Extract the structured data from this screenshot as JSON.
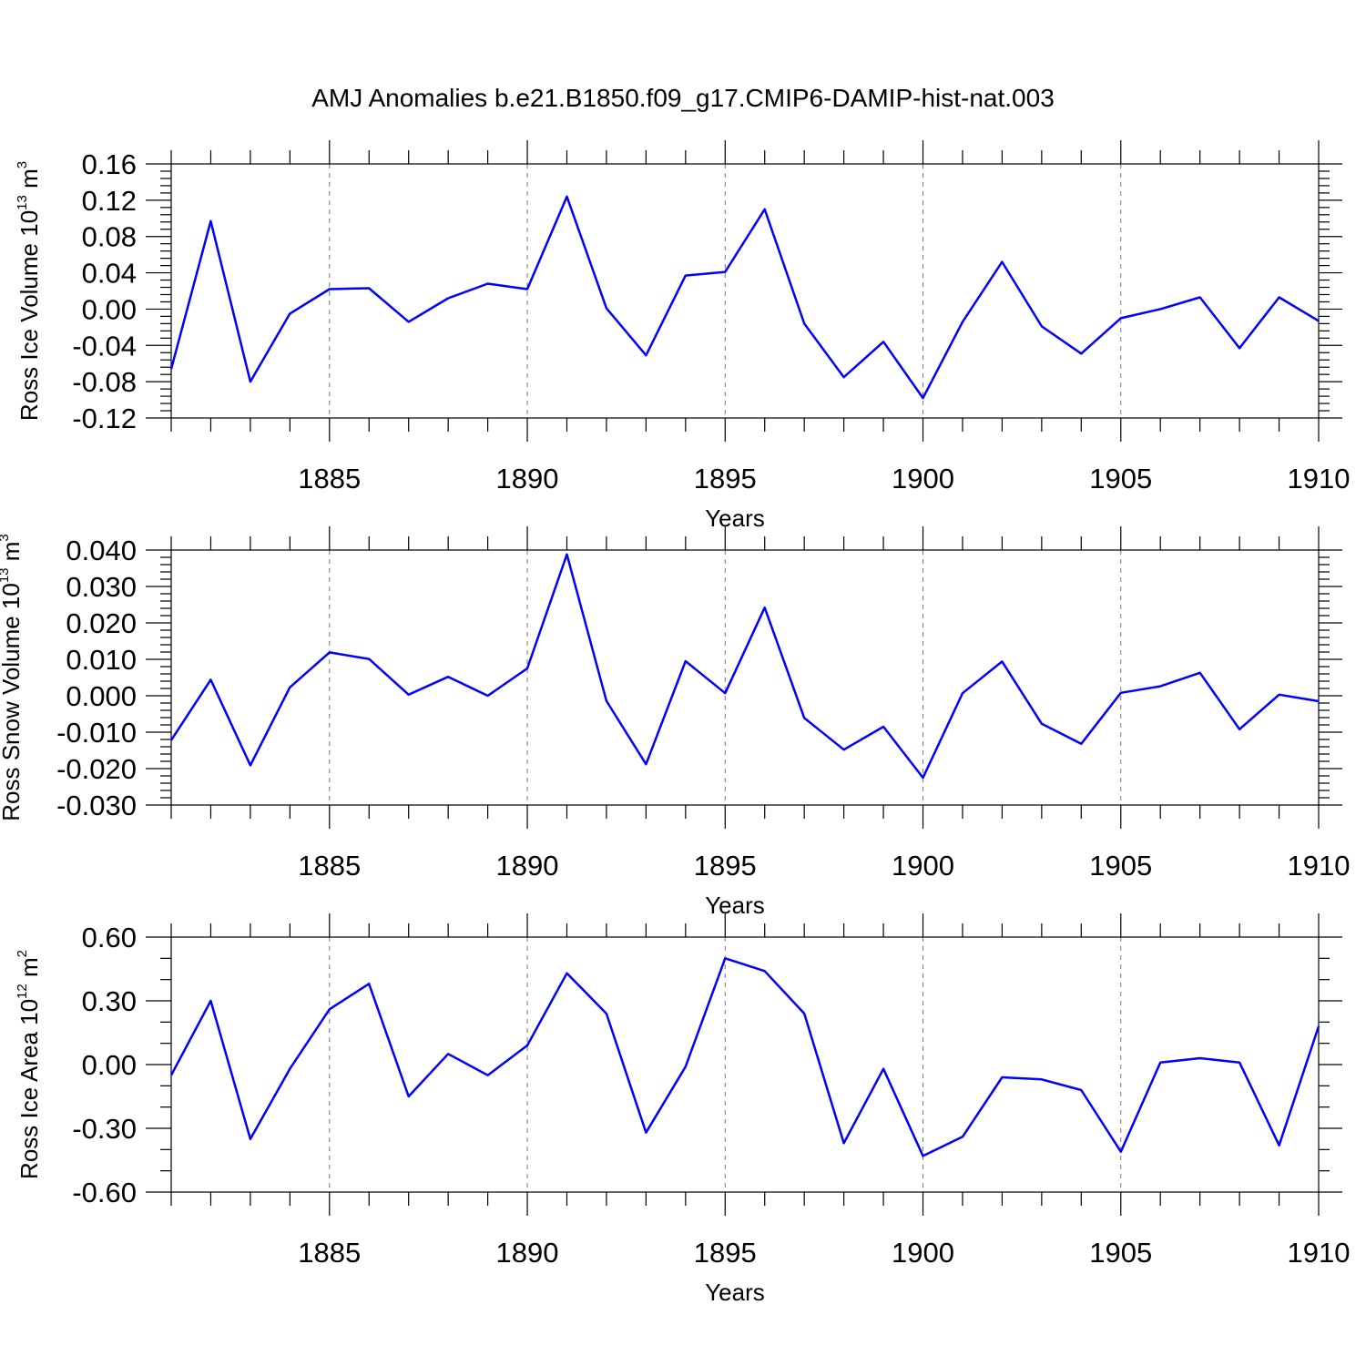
{
  "title": "AMJ Anomalies b.e21.B1850.f09_g17.CMIP6-DAMIP-hist-nat.003",
  "colors": {
    "line": "#0000ff",
    "axis": "#000000",
    "grid": "#777777"
  },
  "chart_data": [
    {
      "type": "line",
      "ylabel": {
        "text": "Ross Ice Volume 10",
        "exp": "13",
        "unit": " m",
        "unit_exp": "3"
      },
      "xlabel": "Years",
      "xlim": [
        1881,
        1910
      ],
      "ylim": [
        -0.12,
        0.16
      ],
      "x_ticks": [
        1885,
        1890,
        1895,
        1900,
        1905,
        1910
      ],
      "x_tick_labels": [
        "1885",
        "1890",
        "1895",
        "1900",
        "1905",
        "1910"
      ],
      "y_ticks": [
        -0.12,
        -0.08,
        -0.04,
        0.0,
        0.04,
        0.08,
        0.12,
        0.16
      ],
      "y_tick_labels": [
        "-0.12",
        "-0.08",
        "-0.04",
        "0.00",
        "0.04",
        "0.08",
        "0.12",
        "0.16"
      ],
      "y_minor_step": 0.008,
      "grid": "dashed vertical at labeled years",
      "x": [
        1881,
        1882,
        1883,
        1884,
        1885,
        1886,
        1887,
        1888,
        1889,
        1890,
        1891,
        1892,
        1893,
        1894,
        1895,
        1896,
        1897,
        1898,
        1899,
        1900,
        1901,
        1902,
        1903,
        1904,
        1905,
        1906,
        1907,
        1908,
        1909,
        1910
      ],
      "y": [
        -0.066,
        0.097,
        -0.08,
        -0.005,
        0.022,
        0.023,
        -0.014,
        0.012,
        0.028,
        0.022,
        0.124,
        0.001,
        -0.051,
        0.037,
        0.041,
        0.11,
        -0.016,
        -0.075,
        -0.036,
        -0.098,
        -0.014,
        0.052,
        -0.019,
        -0.049,
        -0.01,
        0.0,
        0.013,
        -0.043,
        0.013,
        -0.013
      ]
    },
    {
      "type": "line",
      "ylabel": {
        "text": "Ross Snow Volume 10",
        "exp": "13",
        "unit": " m",
        "unit_exp": "3"
      },
      "xlabel": "Years",
      "xlim": [
        1881,
        1910
      ],
      "ylim": [
        -0.03,
        0.04
      ],
      "x_ticks": [
        1885,
        1890,
        1895,
        1900,
        1905,
        1910
      ],
      "x_tick_labels": [
        "1885",
        "1890",
        "1895",
        "1900",
        "1905",
        "1910"
      ],
      "y_ticks": [
        -0.03,
        -0.02,
        -0.01,
        0.0,
        0.01,
        0.02,
        0.03,
        0.04
      ],
      "y_tick_labels": [
        "-0.030",
        "-0.020",
        "-0.010",
        "0.000",
        "0.010",
        "0.020",
        "0.030",
        "0.040"
      ],
      "y_minor_step": 0.002,
      "grid": "dashed vertical at labeled years",
      "x": [
        1881,
        1882,
        1883,
        1884,
        1885,
        1886,
        1887,
        1888,
        1889,
        1890,
        1891,
        1892,
        1893,
        1894,
        1895,
        1896,
        1897,
        1898,
        1899,
        1900,
        1901,
        1902,
        1903,
        1904,
        1905,
        1906,
        1907,
        1908,
        1909,
        1910
      ],
      "y": [
        -0.0122,
        0.0044,
        -0.0191,
        0.0023,
        0.0119,
        0.0101,
        0.0003,
        0.0052,
        0.0,
        0.0075,
        0.0388,
        -0.0014,
        -0.0188,
        0.0095,
        0.0007,
        0.0242,
        -0.0061,
        -0.0148,
        -0.0085,
        -0.0225,
        0.0007,
        0.0094,
        -0.0077,
        -0.0132,
        0.0008,
        0.0026,
        0.0063,
        -0.0092,
        0.0003,
        -0.0015
      ]
    },
    {
      "type": "line",
      "ylabel": {
        "text": "Ross Ice Area 10",
        "exp": "12",
        "unit": " m",
        "unit_exp": "2"
      },
      "xlabel": "Years",
      "xlim": [
        1881,
        1910
      ],
      "ylim": [
        -0.6,
        0.6
      ],
      "x_ticks": [
        1885,
        1890,
        1895,
        1900,
        1905,
        1910
      ],
      "x_tick_labels": [
        "1885",
        "1890",
        "1895",
        "1900",
        "1905",
        "1910"
      ],
      "y_ticks": [
        -0.6,
        -0.3,
        0.0,
        0.3,
        0.6
      ],
      "y_tick_labels": [
        "-0.60",
        "-0.30",
        "0.00",
        "0.30",
        "0.60"
      ],
      "y_minor_step": 0.1,
      "grid": "dashed vertical at labeled years",
      "x": [
        1881,
        1882,
        1883,
        1884,
        1885,
        1886,
        1887,
        1888,
        1889,
        1890,
        1891,
        1892,
        1893,
        1894,
        1895,
        1896,
        1897,
        1898,
        1899,
        1900,
        1901,
        1902,
        1903,
        1904,
        1905,
        1906,
        1907,
        1908,
        1909,
        1910
      ],
      "y": [
        -0.05,
        0.3,
        -0.35,
        -0.02,
        0.26,
        0.38,
        -0.15,
        0.05,
        -0.05,
        0.09,
        0.43,
        0.24,
        -0.32,
        -0.01,
        0.5,
        0.44,
        0.24,
        -0.37,
        -0.02,
        -0.43,
        -0.34,
        -0.06,
        -0.07,
        -0.12,
        -0.41,
        0.01,
        0.03,
        0.01,
        -0.38,
        0.18
      ]
    }
  ]
}
